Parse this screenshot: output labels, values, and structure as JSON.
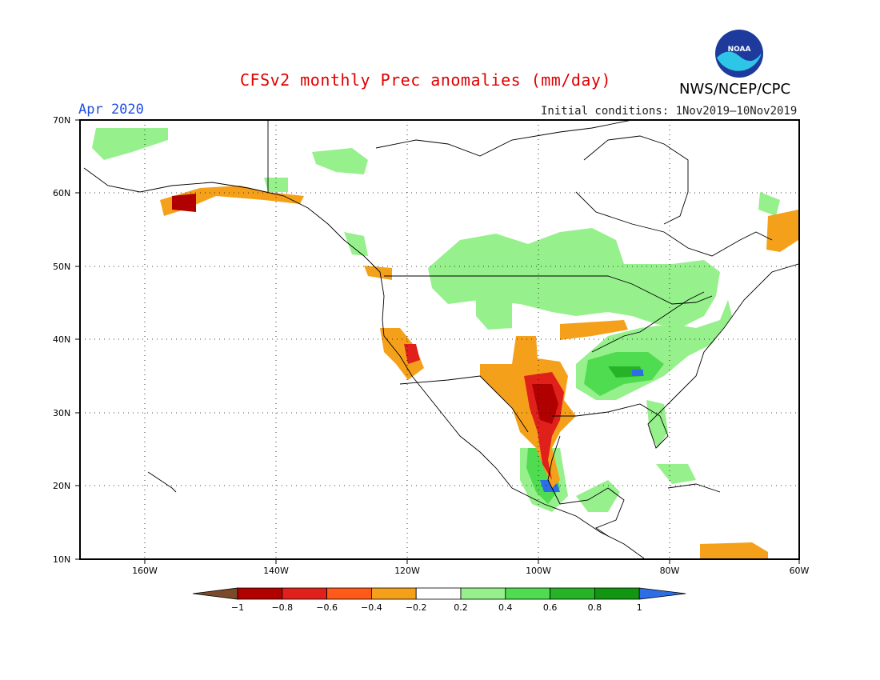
{
  "title": "CFSv2 monthly Prec anomalies (mm/day)",
  "month": "Apr 2020",
  "initial_conditions": "Initial conditions: 1Nov2019–10Nov2019",
  "agency": "NWS/NCEP/CPC",
  "logo_text": "NOAA",
  "lat_labels": [
    "70N",
    "60N",
    "50N",
    "40N",
    "30N",
    "20N",
    "10N"
  ],
  "lon_labels": [
    "160W",
    "140W",
    "120W",
    "100W",
    "80W",
    "60W"
  ],
  "colorbar": {
    "tick_labels": [
      "−1",
      "−0.8",
      "−0.6",
      "−0.4",
      "−0.2",
      "0.2",
      "0.4",
      "0.6",
      "0.8",
      "1"
    ],
    "colors": [
      "#7a4a2a",
      "#b00000",
      "#e0201a",
      "#ff5a1a",
      "#f5a01a",
      "#ffffff",
      "#96f08c",
      "#50dc50",
      "#26b426",
      "#129612",
      "#2d6ee6"
    ]
  },
  "colors": {
    "dry_strong": "#b00000",
    "dry_med": "#e0201a",
    "dry_light": "#f5a01a",
    "wet_light": "#96f08c",
    "wet_med": "#50dc50",
    "wet_strong": "#26b426",
    "wet_max": "#2d6ee6"
  }
}
